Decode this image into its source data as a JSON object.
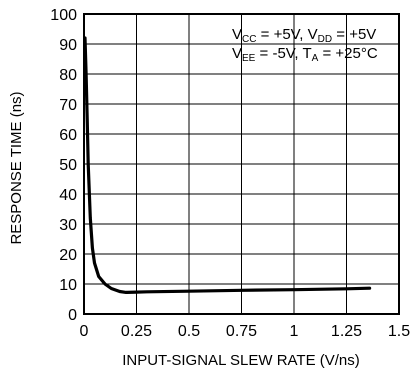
{
  "chart_data": {
    "type": "line",
    "xlabel": "INPUT-SIGNAL SLEW RATE (V/ns)",
    "ylabel": "RESPONSE TIME (ns)",
    "xlim": [
      0,
      1.5
    ],
    "ylim": [
      0,
      100
    ],
    "x_ticks": [
      "0",
      "0.25",
      "0.5",
      "0.75",
      "1",
      "1.25",
      "1.5"
    ],
    "y_ticks": [
      "0",
      "10",
      "20",
      "30",
      "40",
      "50",
      "60",
      "70",
      "80",
      "90",
      "100"
    ],
    "grid": true,
    "annotation": {
      "line1": {
        "v1": "V",
        "s1": "CC",
        "t1": " = +5V, V",
        "s2": "DD",
        "t2": " = +5V"
      },
      "line2": {
        "v1": "V",
        "s1": "EE",
        "t1": " = -5V, T",
        "s2": "A",
        "t2": " = +25°C"
      }
    },
    "series": [
      {
        "x": [
          0.005,
          0.01,
          0.015,
          0.02,
          0.03,
          0.04,
          0.05,
          0.07,
          0.1,
          0.13,
          0.17,
          0.2,
          0.25,
          0.3,
          0.5,
          0.75,
          1.0,
          1.25,
          1.36
        ],
        "y": [
          92,
          80,
          65,
          50,
          32,
          22,
          17,
          12.5,
          10,
          8.5,
          7.5,
          7.2,
          7.3,
          7.4,
          7.6,
          7.9,
          8.1,
          8.4,
          8.6
        ]
      }
    ]
  }
}
